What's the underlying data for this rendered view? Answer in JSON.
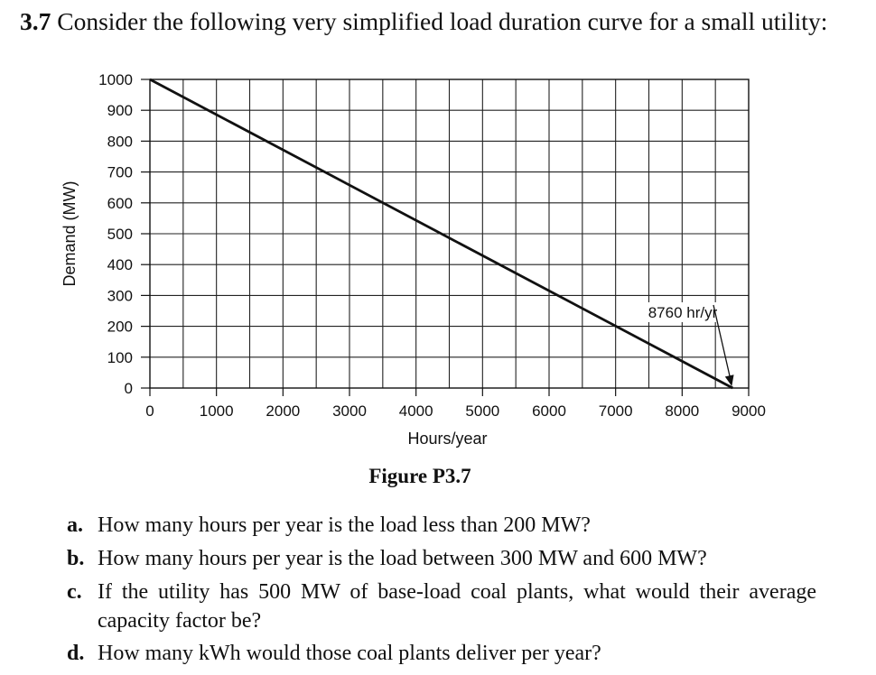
{
  "header": {
    "number": "3.7",
    "text": "Consider the following very simplified load duration curve for a small utility:"
  },
  "chart_data": {
    "type": "line",
    "xlabel": "Hours/year",
    "ylabel": "Demand (MW)",
    "xlim": [
      0,
      9000
    ],
    "ylim": [
      0,
      1000
    ],
    "x_ticks": [
      "0",
      "1000",
      "2000",
      "3000",
      "4000",
      "5000",
      "6000",
      "7000",
      "8000",
      "9000"
    ],
    "y_ticks": [
      "0",
      "100",
      "200",
      "300",
      "400",
      "500",
      "600",
      "700",
      "800",
      "900",
      "1000"
    ],
    "grid": true,
    "grid_x_step": 500,
    "grid_y_step": 100,
    "series": [
      {
        "x": [
          0,
          8760
        ],
        "y": [
          1000,
          0
        ]
      }
    ],
    "annotations": [
      {
        "text": "8760 hr/yr",
        "points_to": {
          "x": 8760,
          "y": 0
        }
      }
    ]
  },
  "caption": "Figure P3.7",
  "questions": [
    {
      "letter": "a.",
      "text": "How many hours per year is the load less than 200 MW?"
    },
    {
      "letter": "b.",
      "text": "How many hours per year is the load between 300 MW and 600 MW?"
    },
    {
      "letter": "c.",
      "text": "If the utility has 500 MW of base-load coal plants, what would their average capacity factor be?"
    },
    {
      "letter": "d.",
      "text": "How many kWh would those coal plants deliver per year?"
    }
  ]
}
